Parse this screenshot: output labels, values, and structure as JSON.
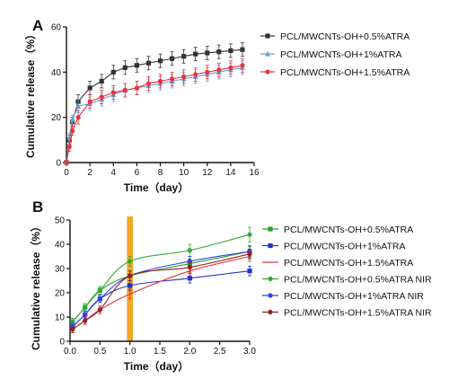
{
  "chart_data": [
    {
      "panel_label": "A",
      "type": "line",
      "xlabel": "Time（day）",
      "ylabel": "Cumulative release（%）",
      "xlim": [
        0,
        16
      ],
      "ylim": [
        0,
        60
      ],
      "xticks": [
        0,
        2,
        4,
        6,
        8,
        10,
        12,
        14,
        16
      ],
      "yticks": [
        0,
        20,
        40,
        60
      ],
      "legend_position": "right",
      "series": [
        {
          "name": "PCL/MWCNTs-OH+0.5%ATRA",
          "color": "#333333",
          "marker": "square",
          "x": [
            0,
            0.25,
            0.5,
            1,
            2,
            3,
            4,
            5,
            6,
            7,
            8,
            9,
            10,
            11,
            12,
            13,
            14,
            15
          ],
          "y": [
            0,
            10,
            18,
            27,
            33,
            36,
            40,
            42,
            43,
            44,
            45,
            46,
            47,
            48,
            48.5,
            49,
            49.5,
            50
          ],
          "err": [
            0,
            2,
            2,
            3,
            3,
            3,
            3,
            3,
            3,
            3,
            3,
            3,
            3,
            3,
            3,
            3,
            3,
            3
          ]
        },
        {
          "name": "PCL/MWCNTs-OH+1%ATRA",
          "color": "#6aa0d8",
          "marker": "triangle",
          "x": [
            0,
            0.25,
            0.5,
            1,
            2,
            3,
            4,
            5,
            6,
            7,
            8,
            9,
            10,
            11,
            12,
            13,
            14,
            15
          ],
          "y": [
            0,
            11,
            19,
            25,
            26,
            28,
            30,
            32,
            33,
            34,
            35,
            36,
            37,
            38,
            39,
            40,
            41,
            42
          ],
          "err": [
            0,
            2,
            2,
            3,
            3,
            3,
            3,
            3,
            3,
            3,
            3,
            3,
            3,
            3,
            3,
            3,
            3,
            3
          ]
        },
        {
          "name": "PCL/MWCNTs-OH+1.5%ATRA",
          "color": "#e8333a",
          "marker": "circle",
          "x": [
            0,
            0.25,
            0.5,
            1,
            2,
            3,
            4,
            5,
            6,
            7,
            8,
            9,
            10,
            11,
            12,
            13,
            14,
            15
          ],
          "y": [
            0,
            7,
            14,
            20,
            27,
            29,
            31,
            32,
            33,
            35,
            36,
            37,
            38,
            39,
            40,
            41,
            42,
            43
          ],
          "err": [
            0,
            2,
            2,
            3,
            3,
            3,
            3,
            3,
            3,
            3,
            3,
            3,
            3,
            3,
            3,
            3,
            3,
            3
          ]
        }
      ]
    },
    {
      "panel_label": "B",
      "type": "line",
      "xlabel": "Time（day）",
      "ylabel": "Cumulative release（%）",
      "xlim": [
        0,
        3
      ],
      "ylim": [
        0,
        50
      ],
      "xticks": [
        "0.0",
        "0.5",
        "1.0",
        "1.5",
        "2.0",
        "2.5",
        "3.0"
      ],
      "yticks": [
        0,
        10,
        20,
        30,
        40,
        50
      ],
      "highlight_band": {
        "x": [
          0.95,
          1.05
        ],
        "color": "#f5a623"
      },
      "legend_position": "right",
      "series": [
        {
          "name": "PCL/MWCNTs-OH+0.5%ATRA",
          "color": "#2ca02c",
          "marker": "square",
          "x": [
            0.042,
            0.25,
            0.5,
            1,
            2,
            3
          ],
          "y": [
            8,
            14,
            21,
            27,
            32,
            37
          ],
          "err": [
            1.5,
            1.5,
            1.5,
            2,
            2,
            2
          ]
        },
        {
          "name": "PCL/MWCNTs-OH+1%ATRA",
          "color": "#2233cc",
          "marker": "square",
          "x": [
            0.042,
            0.25,
            0.5,
            1,
            2,
            3
          ],
          "y": [
            6,
            11,
            17.5,
            23,
            26,
            29
          ],
          "err": [
            1.5,
            1.5,
            1.5,
            2,
            2,
            2
          ]
        },
        {
          "name": "PCL/MWCNTs-OH+1.5%ATRA",
          "color": "#e8333a",
          "marker": "none",
          "x": [
            0.042,
            0.25,
            0.5,
            1,
            2,
            3
          ],
          "y": [
            5,
            8.5,
            13,
            19.5,
            29,
            35
          ],
          "err": [
            1.5,
            1.5,
            1.5,
            2,
            2,
            2
          ]
        },
        {
          "name": "PCL/MWCNTs-OH+0.5%ATRA NIR",
          "color": "#33aa33",
          "marker": "circle",
          "x": [
            0.042,
            0.25,
            0.5,
            1,
            2,
            3
          ],
          "y": [
            8,
            14,
            21,
            33,
            37.5,
            44
          ],
          "err": [
            1.5,
            1.5,
            1.5,
            2,
            2.5,
            3
          ]
        },
        {
          "name": "PCL/MWCNTs-OH+1%ATRA NIR",
          "color": "#3344dd",
          "marker": "circle",
          "x": [
            0.042,
            0.25,
            0.5,
            1,
            2,
            3
          ],
          "y": [
            6,
            11,
            17.5,
            27,
            33,
            37
          ],
          "err": [
            1.5,
            1.5,
            1.5,
            2,
            2,
            2.5
          ]
        },
        {
          "name": "PCL/MWCNTs-OH+1.5%ATRA NIR",
          "color": "#991f1f",
          "marker": "circle",
          "x": [
            0.042,
            0.25,
            0.5,
            1,
            2,
            3
          ],
          "y": [
            5,
            8.5,
            13,
            27,
            30.5,
            36
          ],
          "err": [
            1.5,
            1.5,
            1.5,
            2,
            2,
            2
          ]
        }
      ]
    }
  ]
}
